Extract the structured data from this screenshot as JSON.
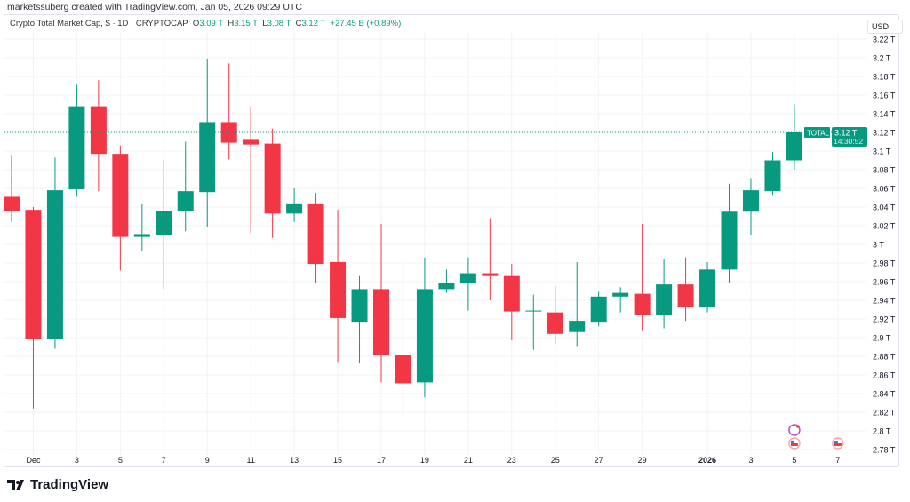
{
  "credit": "marketssuberg created with TradingView.com, Jan 05, 2026 09:29 UTC",
  "legend": {
    "title": "Crypto Total Market Cap, $ · 1D · CRYPTOCAP",
    "o_label": "O",
    "o": "3.09 T",
    "h_label": "H",
    "h": "3.15 T",
    "l_label": "L",
    "l": "3.08 T",
    "c_label": "C",
    "c": "3.12 T",
    "change": "+27.45 B (+0.89%)"
  },
  "currency": "USD",
  "price_tag": {
    "symbol": "TOTAL",
    "price": "3.12 T",
    "countdown": "14:30:52"
  },
  "brand": "TradingView",
  "colors": {
    "up": "#089981",
    "down": "#f23645"
  },
  "chart_data": {
    "type": "candlestick",
    "ylim": [
      2.78,
      3.22
    ],
    "yticks": [
      "3.22 T",
      "3.2 T",
      "3.18 T",
      "3.16 T",
      "3.14 T",
      "3.12 T",
      "3.1 T",
      "3.08 T",
      "3.06 T",
      "3.04 T",
      "3.02 T",
      "3 T",
      "2.98 T",
      "2.96 T",
      "2.94 T",
      "2.92 T",
      "2.9 T",
      "2.88 T",
      "2.86 T",
      "2.84 T",
      "2.82 T",
      "2.8 T",
      "2.78 T"
    ],
    "xticks": [
      {
        "day": 1,
        "label": "Dec"
      },
      {
        "day": 3,
        "label": "3"
      },
      {
        "day": 5,
        "label": "5"
      },
      {
        "day": 7,
        "label": "7"
      },
      {
        "day": 9,
        "label": "9"
      },
      {
        "day": 11,
        "label": "11"
      },
      {
        "day": 13,
        "label": "13"
      },
      {
        "day": 15,
        "label": "15"
      },
      {
        "day": 17,
        "label": "17"
      },
      {
        "day": 19,
        "label": "19"
      },
      {
        "day": 21,
        "label": "21"
      },
      {
        "day": 23,
        "label": "23"
      },
      {
        "day": 25,
        "label": "25"
      },
      {
        "day": 27,
        "label": "27"
      },
      {
        "day": 29,
        "label": "29"
      },
      {
        "day": 32,
        "label": "2026"
      },
      {
        "day": 34,
        "label": "3"
      },
      {
        "day": 36,
        "label": "5"
      },
      {
        "day": 38,
        "label": "7"
      }
    ],
    "candles": [
      {
        "date": "2025-11-30",
        "o": 3.051,
        "h": 3.095,
        "l": 3.024,
        "c": 3.036
      },
      {
        "date": "2025-12-01",
        "o": 3.037,
        "h": 3.04,
        "l": 2.824,
        "c": 2.899
      },
      {
        "date": "2025-12-02",
        "o": 2.899,
        "h": 3.093,
        "l": 2.888,
        "c": 3.058
      },
      {
        "date": "2025-12-03",
        "o": 3.059,
        "h": 3.171,
        "l": 3.051,
        "c": 3.148
      },
      {
        "date": "2025-12-04",
        "o": 3.148,
        "h": 3.176,
        "l": 3.057,
        "c": 3.097
      },
      {
        "date": "2025-12-05",
        "o": 3.097,
        "h": 3.106,
        "l": 2.972,
        "c": 3.008
      },
      {
        "date": "2025-12-06",
        "o": 3.008,
        "h": 3.043,
        "l": 2.993,
        "c": 3.011
      },
      {
        "date": "2025-12-07",
        "o": 3.01,
        "h": 3.091,
        "l": 2.952,
        "c": 3.036
      },
      {
        "date": "2025-12-08",
        "o": 3.036,
        "h": 3.11,
        "l": 3.014,
        "c": 3.057
      },
      {
        "date": "2025-12-09",
        "o": 3.056,
        "h": 3.199,
        "l": 3.019,
        "c": 3.131
      },
      {
        "date": "2025-12-10",
        "o": 3.131,
        "h": 3.194,
        "l": 3.091,
        "c": 3.109
      },
      {
        "date": "2025-12-11",
        "o": 3.112,
        "h": 3.148,
        "l": 3.012,
        "c": 3.107
      },
      {
        "date": "2025-12-12",
        "o": 3.108,
        "h": 3.124,
        "l": 3.007,
        "c": 3.033
      },
      {
        "date": "2025-12-13",
        "o": 3.033,
        "h": 3.06,
        "l": 3.024,
        "c": 3.043
      },
      {
        "date": "2025-12-14",
        "o": 3.043,
        "h": 3.055,
        "l": 2.959,
        "c": 2.979
      },
      {
        "date": "2025-12-15",
        "o": 2.981,
        "h": 3.037,
        "l": 2.874,
        "c": 2.921
      },
      {
        "date": "2025-12-16",
        "o": 2.917,
        "h": 2.966,
        "l": 2.873,
        "c": 2.952
      },
      {
        "date": "2025-12-17",
        "o": 2.952,
        "h": 3.022,
        "l": 2.852,
        "c": 2.881
      },
      {
        "date": "2025-12-18",
        "o": 2.881,
        "h": 2.983,
        "l": 2.816,
        "c": 2.851
      },
      {
        "date": "2025-12-19",
        "o": 2.852,
        "h": 2.986,
        "l": 2.836,
        "c": 2.952
      },
      {
        "date": "2025-12-20",
        "o": 2.952,
        "h": 2.973,
        "l": 2.948,
        "c": 2.959
      },
      {
        "date": "2025-12-21",
        "o": 2.959,
        "h": 2.986,
        "l": 2.929,
        "c": 2.969
      },
      {
        "date": "2025-12-22",
        "o": 2.969,
        "h": 3.028,
        "l": 2.94,
        "c": 2.966
      },
      {
        "date": "2025-12-23",
        "o": 2.966,
        "h": 2.979,
        "l": 2.897,
        "c": 2.928
      },
      {
        "date": "2025-12-24",
        "o": 2.928,
        "h": 2.946,
        "l": 2.887,
        "c": 2.929
      },
      {
        "date": "2025-12-25",
        "o": 2.927,
        "h": 2.955,
        "l": 2.893,
        "c": 2.904
      },
      {
        "date": "2025-12-26",
        "o": 2.906,
        "h": 2.981,
        "l": 2.891,
        "c": 2.918
      },
      {
        "date": "2025-12-27",
        "o": 2.917,
        "h": 2.949,
        "l": 2.912,
        "c": 2.944
      },
      {
        "date": "2025-12-28",
        "o": 2.944,
        "h": 2.954,
        "l": 2.927,
        "c": 2.948
      },
      {
        "date": "2025-12-29",
        "o": 2.947,
        "h": 3.022,
        "l": 2.908,
        "c": 2.924
      },
      {
        "date": "2025-12-30",
        "o": 2.924,
        "h": 2.984,
        "l": 2.91,
        "c": 2.957
      },
      {
        "date": "2025-12-31",
        "o": 2.957,
        "h": 2.986,
        "l": 2.918,
        "c": 2.933
      },
      {
        "date": "2026-01-01",
        "o": 2.933,
        "h": 2.981,
        "l": 2.927,
        "c": 2.973
      },
      {
        "date": "2026-01-02",
        "o": 2.973,
        "h": 3.065,
        "l": 2.959,
        "c": 3.035
      },
      {
        "date": "2026-01-03",
        "o": 3.035,
        "h": 3.071,
        "l": 3.01,
        "c": 3.058
      },
      {
        "date": "2026-01-04",
        "o": 3.057,
        "h": 3.099,
        "l": 3.052,
        "c": 3.09
      },
      {
        "date": "2026-01-05",
        "o": 3.09,
        "h": 3.15,
        "l": 3.08,
        "c": 3.12
      }
    ],
    "last_price": 3.12,
    "grid": true
  }
}
